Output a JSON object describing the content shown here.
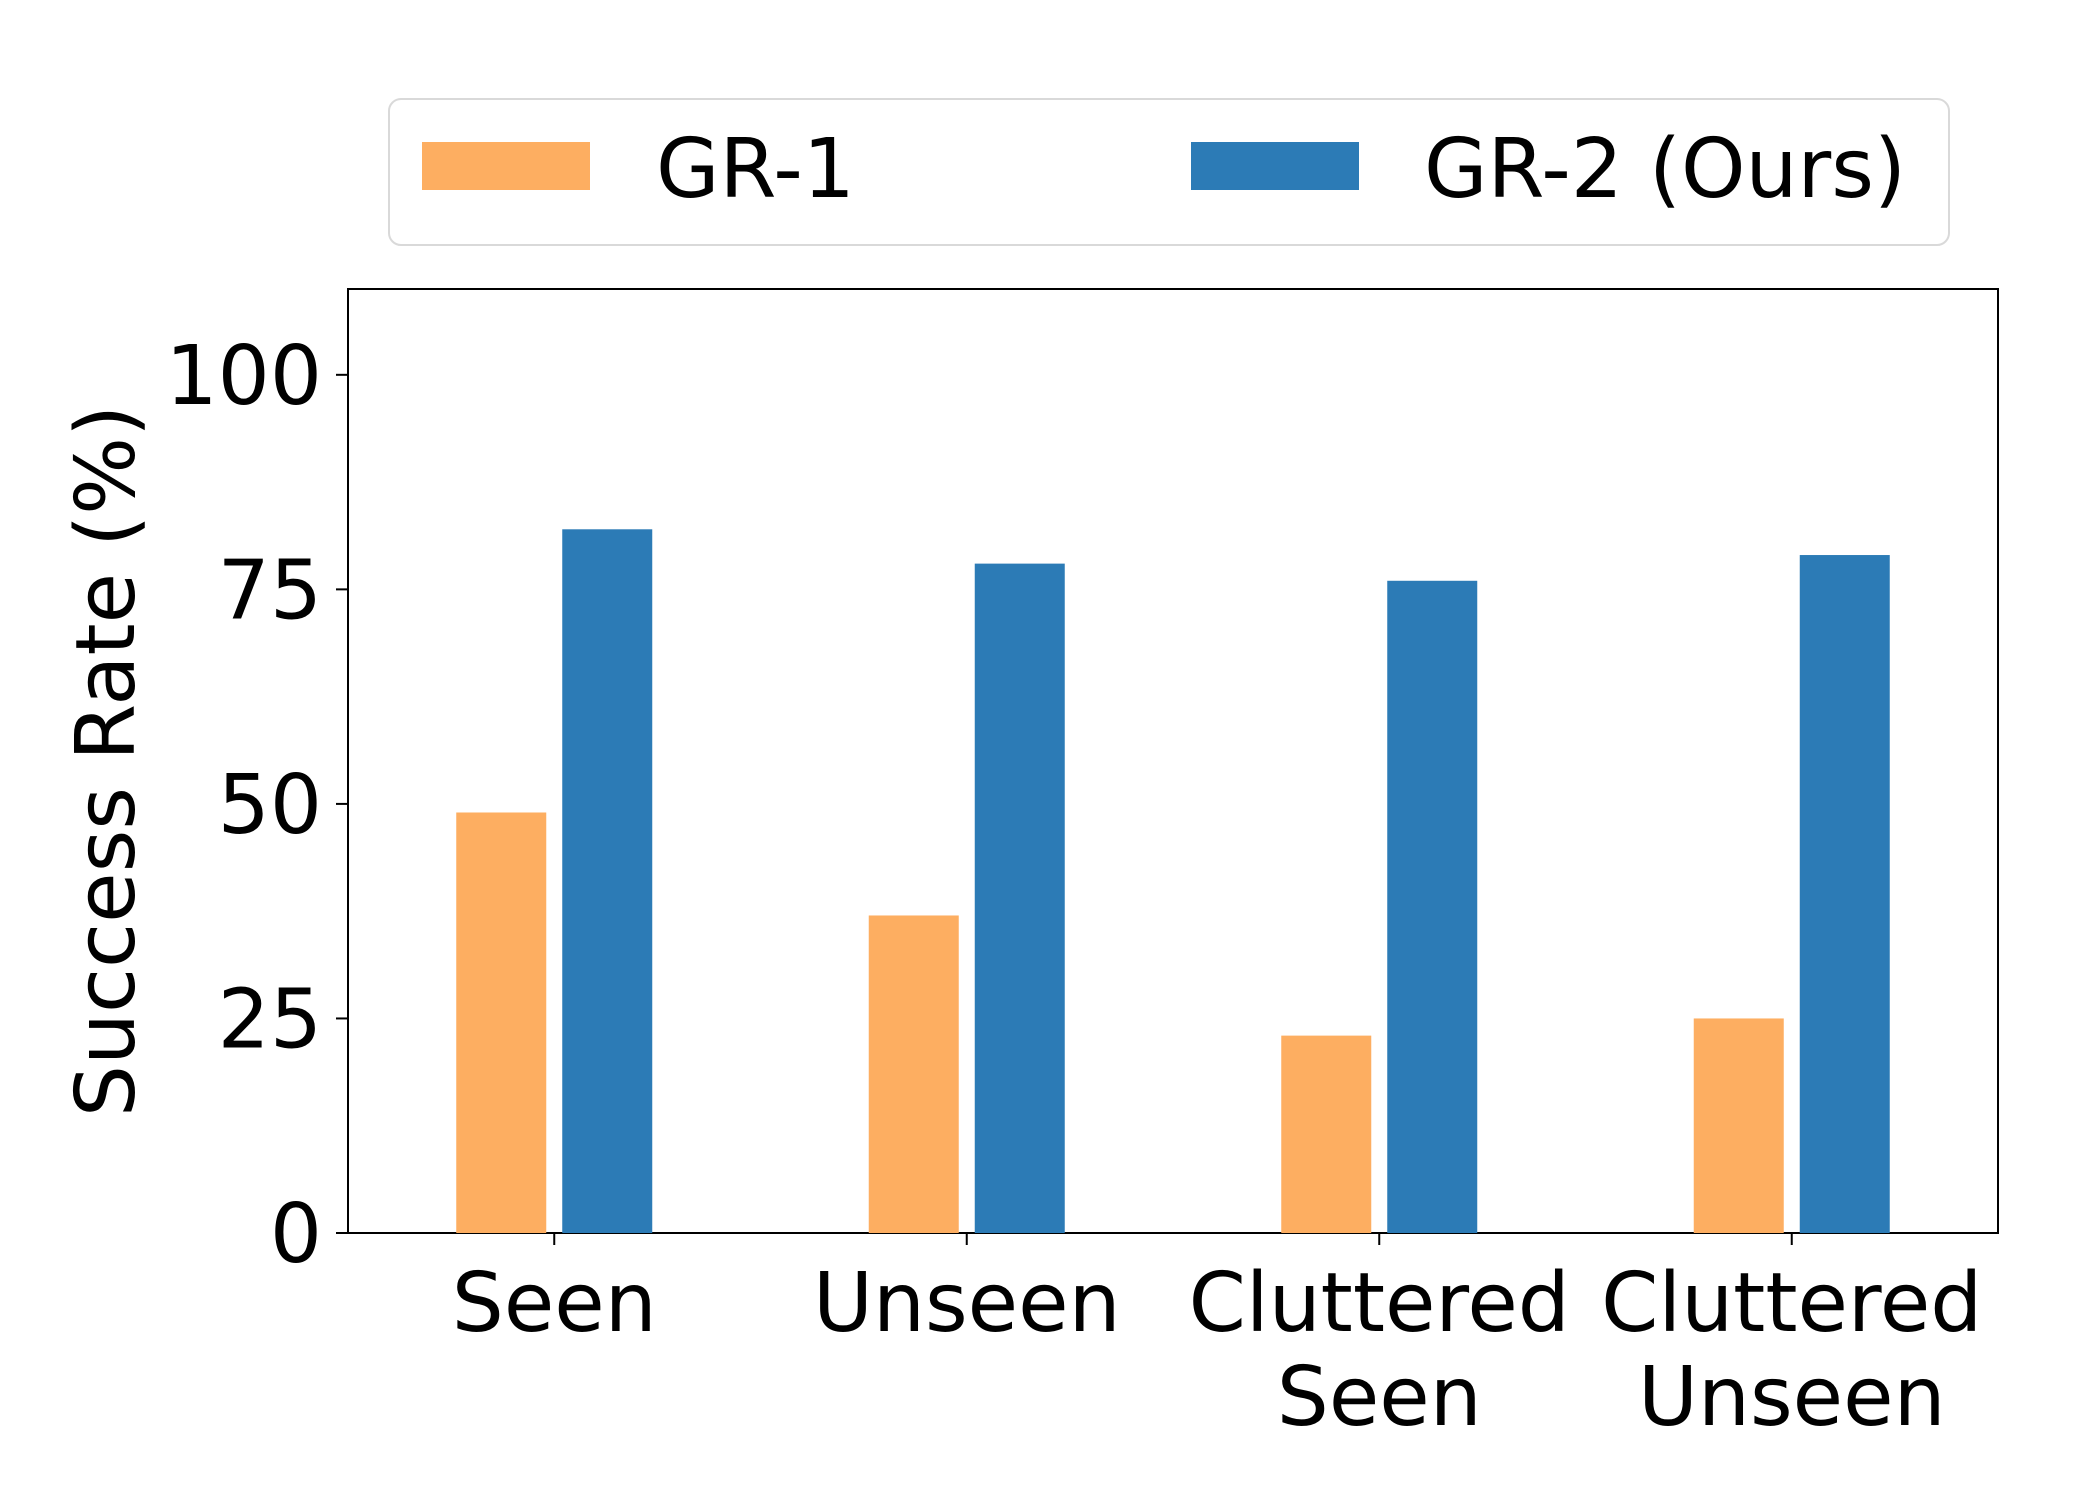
{
  "chart_data": {
    "type": "bar",
    "title": "",
    "xlabel": "",
    "ylabel": "Success Rate (%)",
    "ylim": [
      0,
      110
    ],
    "yticks": [
      0,
      25,
      50,
      75,
      100
    ],
    "categories": [
      [
        "Seen"
      ],
      [
        "Unseen"
      ],
      [
        "Cluttered",
        "Seen"
      ],
      [
        "Cluttered",
        "Unseen"
      ]
    ],
    "series": [
      {
        "name": "GR-1",
        "color": "#fdae61",
        "values": [
          49,
          37,
          23,
          25
        ]
      },
      {
        "name": "GR-2 (Ours)",
        "color": "#2c7bb6",
        "values": [
          82,
          78,
          76,
          79
        ]
      }
    ],
    "legend": {
      "position": "top",
      "columns": 2
    },
    "grid": false
  }
}
